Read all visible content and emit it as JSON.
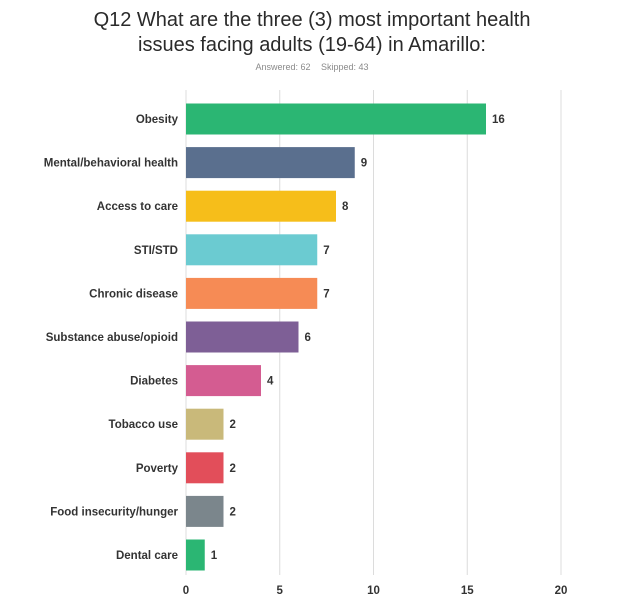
{
  "header": {
    "title": "Q12 What are the three (3) most important health\nissues facing adults (19-64) in Amarillo:",
    "answered": "Answered: 62",
    "skipped": "Skipped: 43"
  },
  "chart_data": {
    "type": "bar",
    "orientation": "horizontal",
    "title": "Q12 What are the three (3) most important health issues facing adults (19-64) in Amarillo:",
    "categories": [
      "Obesity",
      "Mental/behavioral health",
      "Access to care",
      "STI/STD",
      "Chronic disease",
      "Substance abuse/opioid",
      "Diabetes",
      "Tobacco use",
      "Poverty",
      "Food insecurity/hunger",
      "Dental care"
    ],
    "values": [
      16,
      9,
      8,
      7,
      7,
      6,
      4,
      2,
      2,
      2,
      1
    ],
    "colors": [
      "#2bb673",
      "#5a6f8e",
      "#f6be1a",
      "#6bcbd1",
      "#f68b55",
      "#7e5f96",
      "#d45c91",
      "#c9b97a",
      "#e24e5a",
      "#7b868c",
      "#2bb673"
    ],
    "xlim": [
      0,
      20
    ],
    "xticks": [
      "0",
      "5",
      "10",
      "15",
      "20"
    ],
    "grid": true,
    "xlabel": "",
    "ylabel": ""
  }
}
